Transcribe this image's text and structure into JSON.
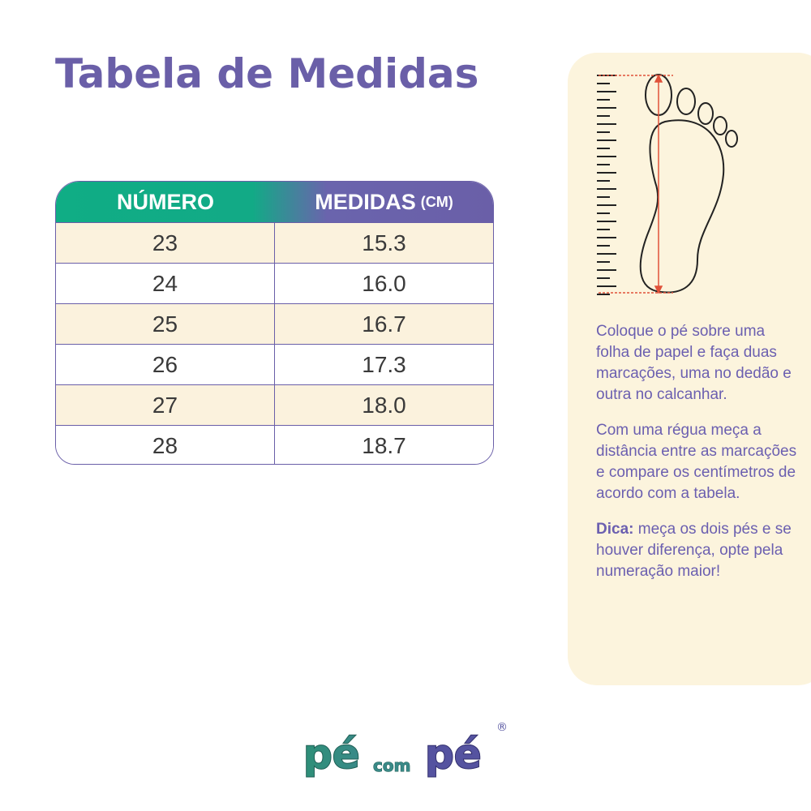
{
  "title": "Tabela de Medidas",
  "table": {
    "headers": {
      "numero": "NÚMERO",
      "medidas": "MEDIDAS",
      "unit": "(CM)"
    },
    "rows": [
      {
        "numero": "23",
        "medida": "15.3"
      },
      {
        "numero": "24",
        "medida": "16.0"
      },
      {
        "numero": "25",
        "medida": "16.7"
      },
      {
        "numero": "26",
        "medida": "17.3"
      },
      {
        "numero": "27",
        "medida": "18.0"
      },
      {
        "numero": "28",
        "medida": "18.7"
      }
    ]
  },
  "instructions": {
    "step1": "Coloque o pé sobre uma folha de papel e faça duas marcações, uma no dedão e outra no calcanhar.",
    "step2": "Com uma régua meça a distância entre as marcações e compare os centímetros de acordo com a tabela.",
    "tip_label": "Dica:",
    "tip": " meça os dois pés e se houver diferença, opte pela numeração maior!"
  },
  "logo": {
    "text": "pé com pé",
    "registered": "®"
  },
  "colors": {
    "title": "#6a5fa8",
    "green": "#10ad85",
    "purple": "#6a5fa8",
    "cream": "#fbf2dd",
    "arrow": "#e0523a"
  }
}
